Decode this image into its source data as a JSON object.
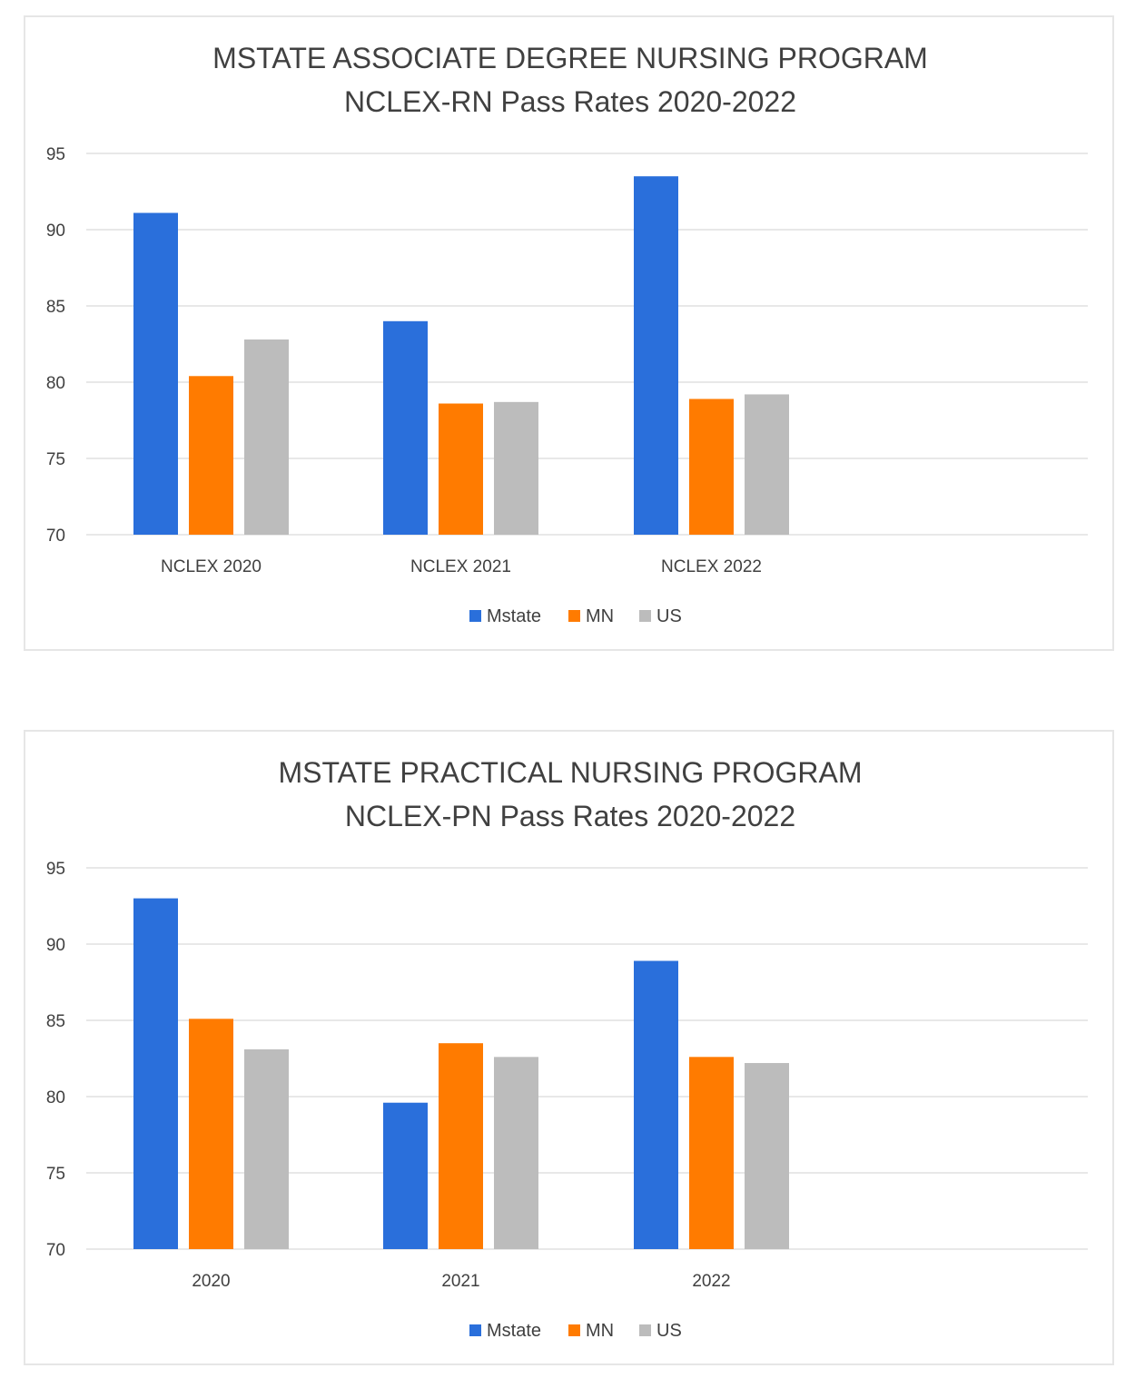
{
  "chart_data": [
    {
      "type": "bar",
      "title": [
        "MSTATE ASSOCIATE DEGREE NURSING PROGRAM",
        "NCLEX-RN Pass Rates 2020-2022"
      ],
      "categories": [
        "NCLEX 2020",
        "NCLEX 2021",
        "NCLEX 2022"
      ],
      "series": [
        {
          "name": "Mstate",
          "color": "#2a6fdb",
          "values": [
            91.1,
            84.0,
            93.5
          ]
        },
        {
          "name": "MN",
          "color": "#ff7b00",
          "values": [
            80.4,
            78.6,
            78.9
          ]
        },
        {
          "name": "US",
          "color": "#bcbcbc",
          "values": [
            82.8,
            78.7,
            79.2
          ]
        }
      ],
      "ylim": [
        70,
        95
      ],
      "yticks": [
        70,
        75,
        80,
        85,
        90,
        95
      ],
      "grid": true,
      "legend": "bottom"
    },
    {
      "type": "bar",
      "title": [
        "MSTATE PRACTICAL NURSING PROGRAM",
        "NCLEX-PN Pass Rates 2020-2022"
      ],
      "categories": [
        "2020",
        "2021",
        "2022"
      ],
      "series": [
        {
          "name": "Mstate",
          "color": "#2a6fdb",
          "values": [
            93.0,
            79.6,
            88.9
          ]
        },
        {
          "name": "MN",
          "color": "#ff7b00",
          "values": [
            85.1,
            83.5,
            82.6
          ]
        },
        {
          "name": "US",
          "color": "#bcbcbc",
          "values": [
            83.1,
            82.6,
            82.2
          ]
        }
      ],
      "ylim": [
        70,
        95
      ],
      "yticks": [
        70,
        75,
        80,
        85,
        90,
        95
      ],
      "grid": true,
      "legend": "bottom"
    }
  ]
}
